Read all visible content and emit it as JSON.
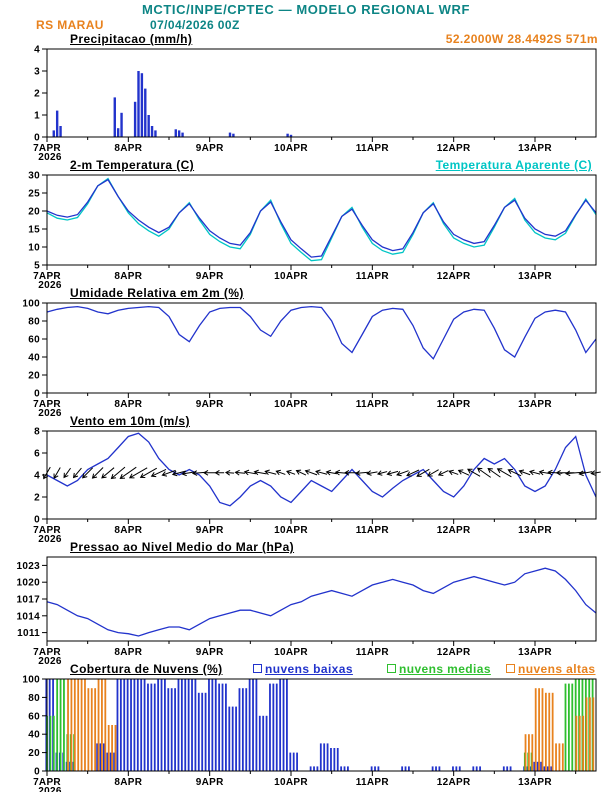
{
  "header": {
    "title": "MCTIC/INPE/CPTEC — MODELO REGIONAL WRF",
    "station": "RS MARAU",
    "run": "07/04/2026 00Z",
    "location": "52.2000W 28.4492S 571m"
  },
  "colors": {
    "teal": "#0d8585",
    "cyan": "#00c5c5",
    "orange": "#e8821e",
    "blue": "#2233cc",
    "green": "#2fbf2f",
    "black": "#000000"
  },
  "x_axis": {
    "tick_labels": [
      "7APR",
      "8APR",
      "9APR",
      "10APR",
      "11APR",
      "12APR",
      "13APR"
    ],
    "year_label": "2026",
    "tick_hours": [
      0,
      24,
      48,
      72,
      96,
      120,
      144
    ],
    "total_hours": 162
  },
  "chart_data": [
    {
      "id": "precipitation",
      "type": "bar",
      "title": "Precipitacao (mm/h)",
      "ylabel": "mm/h",
      "ylim": [
        0,
        4
      ],
      "yticks": [
        0,
        1,
        2,
        3,
        4
      ],
      "color": "blue",
      "bars": [
        [
          2,
          0.3
        ],
        [
          3,
          1.2
        ],
        [
          4,
          0.5
        ],
        [
          20,
          1.8
        ],
        [
          21,
          0.4
        ],
        [
          22,
          1.1
        ],
        [
          26,
          1.6
        ],
        [
          27,
          3.0
        ],
        [
          28,
          2.9
        ],
        [
          29,
          2.2
        ],
        [
          30,
          1.0
        ],
        [
          31,
          0.5
        ],
        [
          32,
          0.3
        ],
        [
          38,
          0.35
        ],
        [
          39,
          0.3
        ],
        [
          40,
          0.2
        ],
        [
          54,
          0.2
        ],
        [
          55,
          0.15
        ],
        [
          71,
          0.15
        ],
        [
          72,
          0.1
        ]
      ]
    },
    {
      "id": "temperature",
      "type": "line",
      "title": "2-m Temperatura (C)",
      "ylim": [
        5,
        30
      ],
      "yticks": [
        5,
        10,
        15,
        20,
        25,
        30
      ],
      "step_hours": 3,
      "series": [
        {
          "name": "Temperatura Aparente (C)",
          "color": "cyan",
          "values": [
            19.5,
            18,
            17.5,
            18.2,
            22,
            27,
            29,
            24,
            19.5,
            16.5,
            14.5,
            13,
            15,
            19.5,
            22.3,
            17.5,
            13.5,
            11.5,
            10,
            9.5,
            13.5,
            20,
            23,
            16.5,
            11,
            8.5,
            6.2,
            6.5,
            12.5,
            18.5,
            21,
            15.5,
            11,
            9,
            8,
            8.5,
            13.5,
            19.5,
            22.3,
            16.5,
            12.5,
            11,
            10,
            10.5,
            15.5,
            21,
            23.5,
            17.5,
            14,
            12.5,
            12,
            13.8,
            18.8,
            23.3,
            19
          ]
        },
        {
          "name": "Temperatura Aparente (C)",
          "color": "cyan",
          "values": []
        },
        {
          "name": "2-m Temperatura (C)",
          "color": "blue",
          "values": [
            20,
            18.8,
            18.3,
            19,
            22.5,
            27,
            28.7,
            24,
            20,
            17.5,
            15.5,
            14,
            15.5,
            19.5,
            22,
            18,
            14.5,
            12.5,
            11,
            10.5,
            14,
            20,
            22.5,
            17,
            12,
            9.5,
            7.2,
            7.5,
            13,
            18.5,
            20.5,
            16,
            12,
            10,
            9,
            9.5,
            14,
            19.5,
            22,
            17,
            13.5,
            12,
            11,
            11.5,
            16,
            21,
            23,
            18,
            15,
            13.5,
            13,
            14.5,
            19,
            23,
            19.5
          ]
        }
      ]
    },
    {
      "id": "humidity",
      "type": "line",
      "title": "Umidade Relativa em 2m (%)",
      "ylim": [
        0,
        100
      ],
      "yticks": [
        0,
        20,
        40,
        60,
        80,
        100
      ],
      "step_hours": 3,
      "series": [
        {
          "name": "Umidade Relativa em 2m (%)",
          "color": "blue",
          "values": [
            90,
            93,
            95,
            96,
            94,
            90,
            88,
            92,
            94,
            95,
            96,
            95,
            85,
            65,
            57,
            75,
            90,
            94,
            95,
            95,
            85,
            70,
            63,
            80,
            92,
            95,
            96,
            95,
            80,
            55,
            45,
            65,
            85,
            92,
            94,
            93,
            75,
            50,
            38,
            60,
            82,
            90,
            93,
            92,
            72,
            48,
            40,
            62,
            83,
            90,
            92,
            90,
            70,
            45,
            60
          ]
        }
      ]
    },
    {
      "id": "wind",
      "type": "wind",
      "title": "Vento em 10m (m/s)",
      "ylim": [
        0,
        8
      ],
      "yticks": [
        0,
        2,
        4,
        6,
        8
      ],
      "step_hours": 3,
      "arrow_y": 4.2,
      "arrow_angles_deg": [
        120,
        120,
        125,
        130,
        135,
        135,
        140,
        140,
        145,
        150,
        150,
        155,
        160,
        165,
        170,
        175,
        180,
        180,
        185,
        185,
        190,
        190,
        195,
        200,
        200,
        205,
        200,
        195,
        190,
        185,
        180,
        175,
        170,
        165,
        165,
        160,
        155,
        150,
        150,
        155,
        200,
        205,
        210,
        215,
        215,
        210,
        205,
        200,
        195,
        190,
        185,
        180,
        175,
        170,
        170
      ],
      "series": [
        {
          "name": "Vento em 10m (m/s)",
          "color": "blue",
          "values": [
            4,
            3.5,
            3,
            3.5,
            4.5,
            5,
            5.5,
            6.5,
            7.5,
            7.8,
            7,
            5.5,
            4.5,
            4,
            4.5,
            4,
            3,
            1.5,
            1.2,
            2,
            3,
            3.5,
            3,
            2,
            1.5,
            2.5,
            3.5,
            3,
            2.5,
            3.5,
            4.5,
            3.5,
            2.5,
            2,
            2.8,
            3.5,
            4,
            4.5,
            3.5,
            2.5,
            2,
            3,
            4.5,
            5.5,
            5,
            5.5,
            4.5,
            3,
            2.5,
            3,
            4.5,
            6.5,
            7.5,
            4,
            2
          ]
        }
      ]
    },
    {
      "id": "pressure",
      "type": "line",
      "title": "Pressao ao Nivel Medio do Mar (hPa)",
      "ylim": [
        1009.5,
        1024.5
      ],
      "yticks": [
        1011,
        1014,
        1017,
        1020,
        1023
      ],
      "step_hours": 3,
      "series": [
        {
          "name": "Pressao ao Nivel Medio do Mar (hPa)",
          "color": "blue",
          "values": [
            1016.5,
            1016,
            1015,
            1014,
            1013.5,
            1012.5,
            1011.5,
            1011,
            1010.8,
            1010.4,
            1011,
            1011.5,
            1012,
            1012,
            1011.5,
            1012.5,
            1013.5,
            1014,
            1014.5,
            1015,
            1015,
            1014.5,
            1014,
            1015,
            1016,
            1016.5,
            1017.5,
            1018,
            1018.5,
            1018,
            1017.5,
            1018.5,
            1019.5,
            1020,
            1020.5,
            1020,
            1019.5,
            1018.5,
            1018,
            1019,
            1020,
            1020.5,
            1021,
            1020.5,
            1020,
            1019.5,
            1020,
            1021.5,
            1022,
            1022.5,
            1022,
            1020.5,
            1018.5,
            1016,
            1014.5
          ]
        }
      ]
    },
    {
      "id": "clouds",
      "type": "cloud",
      "title": "Cobertura de Nuvens (%)",
      "ylim": [
        0,
        100
      ],
      "yticks": [
        0,
        20,
        40,
        60,
        80,
        100
      ],
      "step_hours": 3,
      "series": [
        {
          "label": "nuvens baixas",
          "color": "blue",
          "values": [
            100,
            20,
            10,
            0,
            0,
            30,
            20,
            100,
            100,
            100,
            95,
            100,
            90,
            100,
            100,
            85,
            100,
            95,
            70,
            90,
            100,
            60,
            95,
            100,
            20,
            0,
            5,
            30,
            25,
            5,
            0,
            0,
            5,
            0,
            0,
            5,
            0,
            0,
            5,
            0,
            5,
            0,
            5,
            0,
            0,
            5,
            0,
            5,
            10,
            5,
            0,
            0,
            0,
            0,
            0
          ]
        },
        {
          "label": "nuvens medias",
          "color": "green",
          "values": [
            60,
            100,
            40,
            0,
            0,
            0,
            0,
            0,
            0,
            0,
            0,
            0,
            0,
            0,
            0,
            0,
            0,
            0,
            0,
            0,
            0,
            0,
            0,
            0,
            0,
            0,
            0,
            0,
            0,
            0,
            0,
            0,
            0,
            0,
            0,
            0,
            0,
            0,
            0,
            0,
            0,
            0,
            0,
            0,
            0,
            0,
            0,
            20,
            0,
            0,
            0,
            95,
            100,
            100,
            100
          ]
        },
        {
          "label": "nuvens altas",
          "color": "orange",
          "values": [
            0,
            0,
            100,
            100,
            90,
            100,
            50,
            0,
            0,
            0,
            0,
            0,
            0,
            0,
            0,
            0,
            0,
            0,
            0,
            0,
            0,
            0,
            0,
            0,
            0,
            0,
            0,
            0,
            0,
            0,
            0,
            0,
            0,
            0,
            0,
            0,
            0,
            0,
            0,
            0,
            0,
            0,
            0,
            0,
            0,
            0,
            0,
            40,
            90,
            85,
            30,
            0,
            60,
            80,
            100
          ]
        }
      ]
    }
  ]
}
